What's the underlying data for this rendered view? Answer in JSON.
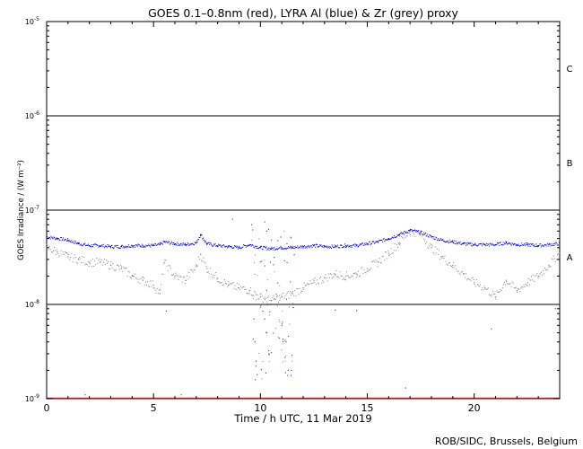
{
  "chart_data": {
    "type": "scatter",
    "title": "GOES 0.1–0.8nm (red), LYRA Al (blue) & Zr (grey) proxy",
    "xlabel": "Time / h UTC, 11 Mar 2019",
    "ylabel": "GOES Irradiance / (W m⁻²)",
    "xlim": [
      0,
      24
    ],
    "ylim": [
      1e-09,
      1e-05
    ],
    "yscale": "log",
    "x_ticks": [
      0,
      5,
      10,
      15,
      20
    ],
    "y_ticks": [
      {
        "value": 1e-09,
        "base": "10",
        "exp": "-9"
      },
      {
        "value": 1e-08,
        "base": "10",
        "exp": "-8"
      },
      {
        "value": 1e-07,
        "base": "10",
        "exp": "-7"
      },
      {
        "value": 1e-06,
        "base": "10",
        "exp": "-6"
      },
      {
        "value": 1e-05,
        "base": "10",
        "exp": "-5"
      }
    ],
    "class_lines": [
      1e-08,
      1e-07,
      1e-06
    ],
    "class_labels": [
      {
        "label": "A",
        "y": 3.2e-08
      },
      {
        "label": "B",
        "y": 3.2e-07
      },
      {
        "label": "C",
        "y": 3.2e-06
      }
    ],
    "series": [
      {
        "color": "#ff0000",
        "x": [
          0,
          24
        ],
        "y": [
          1e-09,
          1e-09
        ]
      },
      {
        "color": "#0000cc",
        "x": [
          0,
          0.5,
          1,
          1.5,
          2,
          2.5,
          3,
          3.5,
          4,
          4.5,
          5,
          5.3,
          5.5,
          6,
          6.5,
          7,
          7.2,
          7.5,
          8,
          8.5,
          9,
          9.5,
          10,
          10.5,
          11,
          11.5,
          12,
          12.5,
          13,
          13.5,
          14,
          14.5,
          15,
          15.5,
          16,
          16.5,
          17,
          17.5,
          18,
          18.5,
          19,
          19.5,
          20,
          20.5,
          21,
          21.5,
          22,
          22.5,
          23,
          23.5,
          24
        ],
        "y": [
          5.2e-08,
          5e-08,
          4.8e-08,
          4.4e-08,
          4.2e-08,
          4.2e-08,
          4.1e-08,
          4.1e-08,
          4.2e-08,
          4.2e-08,
          4.2e-08,
          4.3e-08,
          4.6e-08,
          4.4e-08,
          4.3e-08,
          4.5e-08,
          5.5e-08,
          4.4e-08,
          4.2e-08,
          4.1e-08,
          4e-08,
          4.3e-08,
          4e-08,
          3.9e-08,
          4e-08,
          4e-08,
          4.1e-08,
          4.2e-08,
          4.1e-08,
          4.1e-08,
          4.2e-08,
          4.2e-08,
          4.4e-08,
          4.6e-08,
          5e-08,
          5.5e-08,
          6.1e-08,
          5.8e-08,
          5.2e-08,
          4.8e-08,
          4.6e-08,
          4.4e-08,
          4.3e-08,
          4.3e-08,
          4.3e-08,
          4.5e-08,
          4.3e-08,
          4.3e-08,
          4.2e-08,
          4.3e-08,
          4.4e-08
        ]
      },
      {
        "color": "#808080",
        "x": [
          0,
          0.5,
          1,
          1.5,
          2,
          2.5,
          3,
          3.5,
          4,
          4.5,
          5,
          5.3,
          5.5,
          6,
          6.5,
          7,
          7.2,
          7.5,
          8,
          8.5,
          9,
          9.5,
          10,
          10.5,
          11,
          11.5,
          12,
          12.5,
          13,
          13.5,
          14,
          14.5,
          15,
          15.5,
          16,
          16.5,
          17,
          17.5,
          18,
          18.5,
          19,
          19.5,
          20,
          20.5,
          21,
          21.5,
          22,
          22.5,
          23,
          23.5,
          24
        ],
        "y": [
          4e-08,
          3.6e-08,
          3.2e-08,
          3e-08,
          2.8e-08,
          2.8e-08,
          2.6e-08,
          2.4e-08,
          2e-08,
          1.8e-08,
          1.6e-08,
          1.3e-08,
          2.8e-08,
          2e-08,
          1.8e-08,
          2.5e-08,
          3.4e-08,
          2.4e-08,
          1.9e-08,
          1.6e-08,
          1.5e-08,
          1.4e-08,
          1.2e-08,
          1.1e-08,
          1.2e-08,
          1.3e-08,
          1.5e-08,
          1.7e-08,
          1.9e-08,
          2.1e-08,
          2e-08,
          2.1e-08,
          2.4e-08,
          2.8e-08,
          3.5e-08,
          4.5e-08,
          6e-08,
          5.5e-08,
          4e-08,
          3.2e-08,
          2.6e-08,
          2.1e-08,
          1.7e-08,
          1.5e-08,
          1.2e-08,
          1.8e-08,
          1.4e-08,
          1.7e-08,
          2e-08,
          2.6e-08,
          3.5e-08
        ]
      }
    ],
    "scattered_points": [
      {
        "x": 9.7,
        "y": 7e-09
      },
      {
        "x": 9.75,
        "y": 4e-09
      },
      {
        "x": 9.8,
        "y": 2.5e-09
      },
      {
        "x": 9.85,
        "y": 1.8e-09
      },
      {
        "x": 10.2,
        "y": 7e-09
      },
      {
        "x": 10.3,
        "y": 5e-09
      },
      {
        "x": 10.4,
        "y": 3e-09
      },
      {
        "x": 11.0,
        "y": 6e-09
      },
      {
        "x": 11.2,
        "y": 4e-09
      },
      {
        "x": 11.3,
        "y": 2e-09
      },
      {
        "x": 8.7,
        "y": 8e-08
      },
      {
        "x": 9.6,
        "y": 7e-08
      },
      {
        "x": 10.2,
        "y": 7.5e-08
      },
      {
        "x": 10.3,
        "y": 6e-08
      },
      {
        "x": 16.8,
        "y": 1.3e-09
      },
      {
        "x": 5.6,
        "y": 8.5e-09
      },
      {
        "x": 13.5,
        "y": 8.7e-09
      },
      {
        "x": 14.5,
        "y": 8.6e-09
      },
      {
        "x": 20.8,
        "y": 5.5e-09
      },
      {
        "x": 23.8,
        "y": 9e-09
      },
      {
        "x": 1.8,
        "y": 1.1e-09
      },
      {
        "x": 6.3,
        "y": 1.1e-09
      }
    ],
    "credit": "ROB/SIDC, Brussels, Belgium"
  }
}
